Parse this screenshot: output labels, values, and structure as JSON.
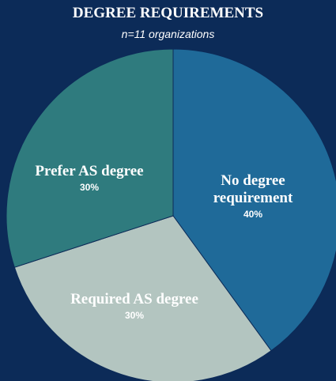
{
  "chart_data": {
    "type": "pie",
    "title": "DEGREE REQUIREMENTS",
    "subtitle": "n=11 organizations",
    "categories": [
      "No degree requirement",
      "Required AS degree",
      "Prefer AS degree"
    ],
    "values": [
      40,
      30,
      30
    ],
    "value_labels": [
      "40%",
      "30%",
      "30%"
    ],
    "colors": [
      "#1f6a99",
      "#b3c5c0",
      "#2f7b7e"
    ]
  }
}
